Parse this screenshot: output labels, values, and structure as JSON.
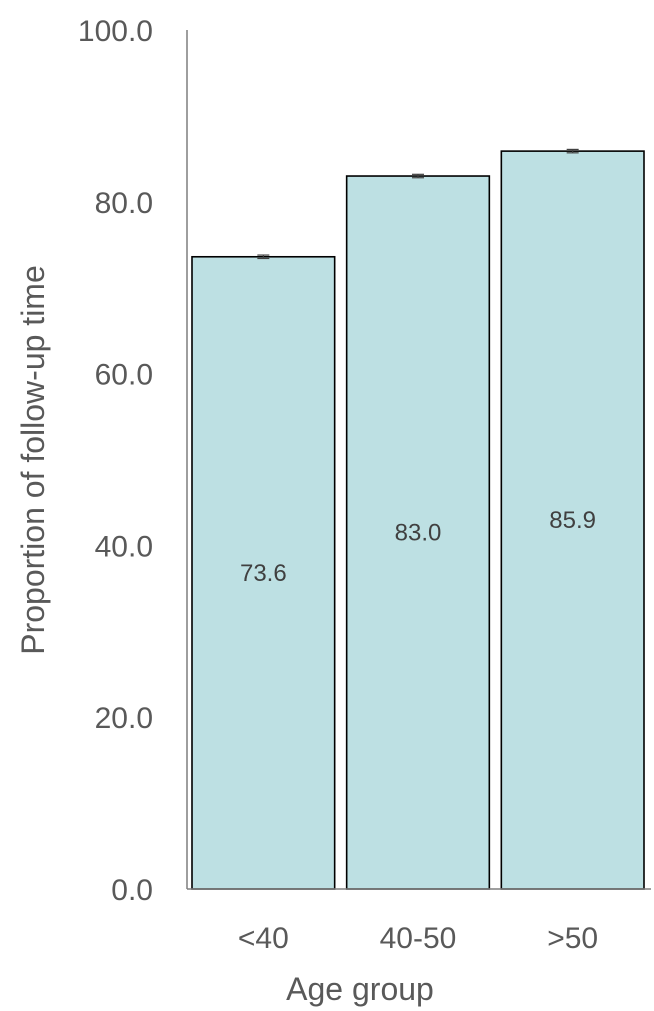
{
  "chart_data": {
    "type": "bar",
    "categories": [
      "<40",
      "40-50",
      ">50"
    ],
    "values": [
      73.6,
      83.0,
      85.9
    ],
    "data_labels": [
      "73.6",
      "83.0",
      "85.9"
    ],
    "error_bars": [
      0.2,
      0.2,
      0.2
    ],
    "title": "",
    "xlabel": "Age group",
    "ylabel": "Proportion of follow-up time",
    "ylim": [
      0,
      100
    ],
    "yticks": [
      0,
      20,
      40,
      60,
      80,
      100
    ],
    "ytick_labels": [
      "0.0",
      "20.0",
      "40.0",
      "60.0",
      "80.0",
      "100.0"
    ],
    "grid": false,
    "legend": "none",
    "colors": {
      "bar_fill": "#bde0e3",
      "bar_stroke": "#000000",
      "axis": "#7f7f7f",
      "text": "#595959",
      "data_label": "#404040"
    }
  }
}
